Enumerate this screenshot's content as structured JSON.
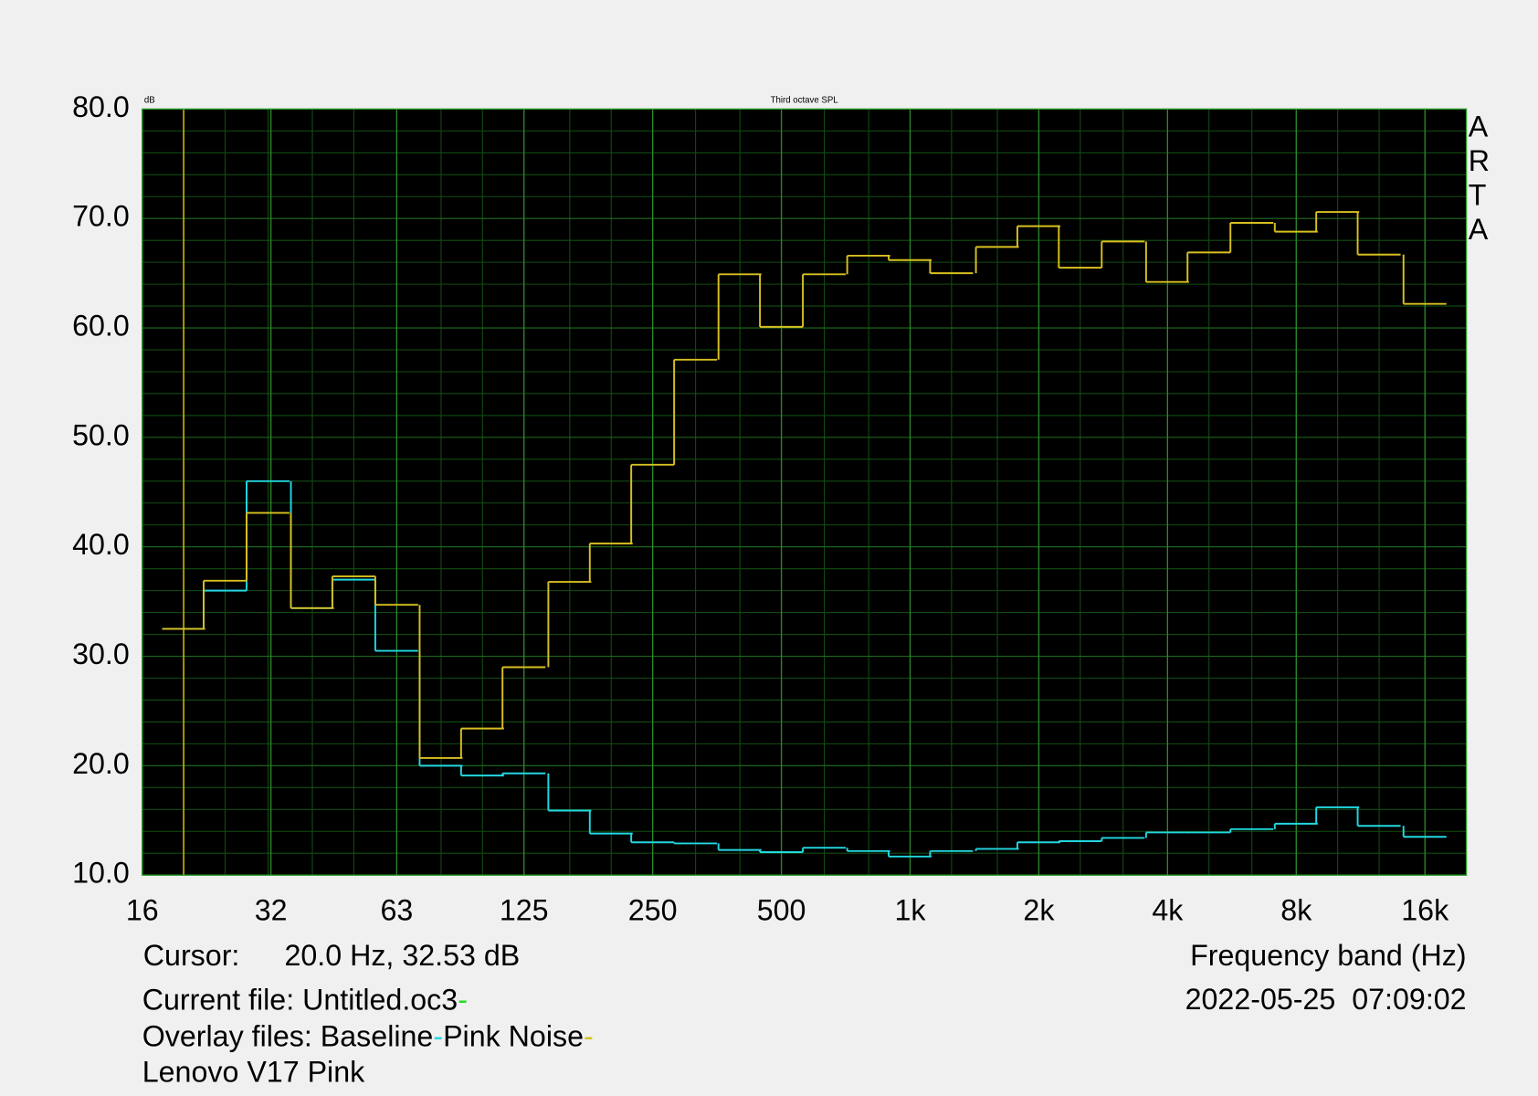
{
  "chart_data": {
    "type": "step",
    "title": "Third octave SPL",
    "y_unit": "dB",
    "brand": "ARTA",
    "xlabel": "Frequency band (Hz)",
    "timestamp": "2022-05-25  07:09:02",
    "cursor_label": "Cursor:",
    "cursor_text": "20.0 Hz, 32.53 dB",
    "cursor_x": 20,
    "cursor_color": "#c8b400",
    "current_file_label": "Current file:",
    "current_file": "Untitled.oc3",
    "current_file_color": "#22dd22",
    "overlay_label": "Overlay files:",
    "note": "Lenovo V17 Pink",
    "log_x": true,
    "grid": true,
    "minor_grid": true,
    "x": [
      20,
      25,
      31.5,
      40,
      50,
      63,
      80,
      100,
      125,
      160,
      200,
      250,
      315,
      400,
      500,
      630,
      800,
      1000,
      1250,
      1600,
      2000,
      2500,
      3150,
      4000,
      5000,
      6300,
      8000,
      10000,
      12500,
      16000
    ],
    "series": [
      {
        "name": "Baseline",
        "color": "#22d8e0",
        "values": [
          32.5,
          36.0,
          46.0,
          34.4,
          37.0,
          30.5,
          20.0,
          19.1,
          19.3,
          15.9,
          13.8,
          13.0,
          12.9,
          12.3,
          12.1,
          12.5,
          12.2,
          11.7,
          12.2,
          12.4,
          13.0,
          13.1,
          13.4,
          13.9,
          13.9,
          14.2,
          14.7,
          16.2,
          14.5,
          13.5
        ]
      },
      {
        "name": "Pink Noise",
        "color": "#d8c020",
        "values": [
          32.5,
          36.9,
          43.1,
          34.4,
          37.3,
          34.7,
          20.7,
          23.4,
          29.0,
          36.8,
          40.3,
          47.5,
          57.1,
          64.9,
          60.1,
          64.9,
          66.6,
          66.2,
          65.0,
          67.4,
          69.3,
          65.5,
          67.9,
          64.2,
          66.9,
          69.6,
          68.8,
          70.6,
          66.7,
          62.2
        ]
      }
    ],
    "xlim": [
      16,
      20000
    ],
    "xticks": [
      16,
      32,
      63,
      125,
      250,
      500,
      {
        "value": 1000,
        "label": "1k"
      },
      {
        "value": 2000,
        "label": "2k"
      },
      {
        "value": 4000,
        "label": "4k"
      },
      {
        "value": 8000,
        "label": "8k"
      },
      {
        "value": 16000,
        "label": "16k"
      }
    ],
    "ylim": [
      10,
      80
    ],
    "yticks": [
      {
        "value": 10,
        "label": "10.0"
      },
      {
        "value": 20,
        "label": "20.0"
      },
      {
        "value": 30,
        "label": "30.0"
      },
      {
        "value": 40,
        "label": "40.0"
      },
      {
        "value": 50,
        "label": "50.0"
      },
      {
        "value": 60,
        "label": "60.0"
      },
      {
        "value": 70,
        "label": "70.0"
      },
      {
        "value": 80,
        "label": "80.0"
      }
    ]
  }
}
